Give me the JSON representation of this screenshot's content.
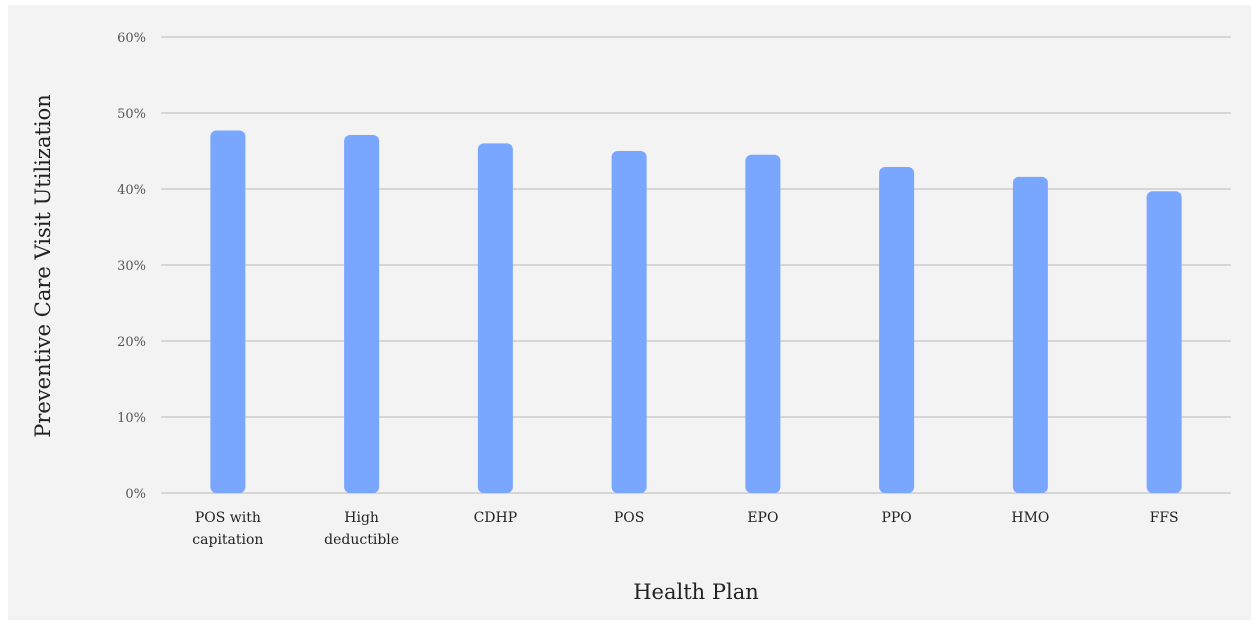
{
  "chart_data": {
    "type": "bar",
    "title": "",
    "xlabel": "Health Plan",
    "ylabel": "Preventive Care Visit Utilization",
    "categories": [
      "POS with capitation",
      "High deductible",
      "CDHP",
      "POS",
      "EPO",
      "PPO",
      "HMO",
      "FFS"
    ],
    "category_lines": [
      [
        "POS with",
        "capitation"
      ],
      [
        "High",
        "deductible"
      ],
      [
        "CDHP"
      ],
      [
        "POS"
      ],
      [
        "EPO"
      ],
      [
        "PPO"
      ],
      [
        "HMO"
      ],
      [
        "FFS"
      ]
    ],
    "values": [
      47.7,
      47.1,
      46.0,
      45.0,
      44.5,
      42.9,
      41.6,
      39.7
    ],
    "ylim": [
      0,
      60
    ],
    "yticks": [
      0,
      10,
      20,
      30,
      40,
      50,
      60
    ],
    "ytick_labels": [
      "0%",
      "10%",
      "20%",
      "30%",
      "40%",
      "50%",
      "60%"
    ],
    "grid": true,
    "legend": "none",
    "bar_color": "#79a6ff",
    "background_color": "#f3f3f3"
  }
}
